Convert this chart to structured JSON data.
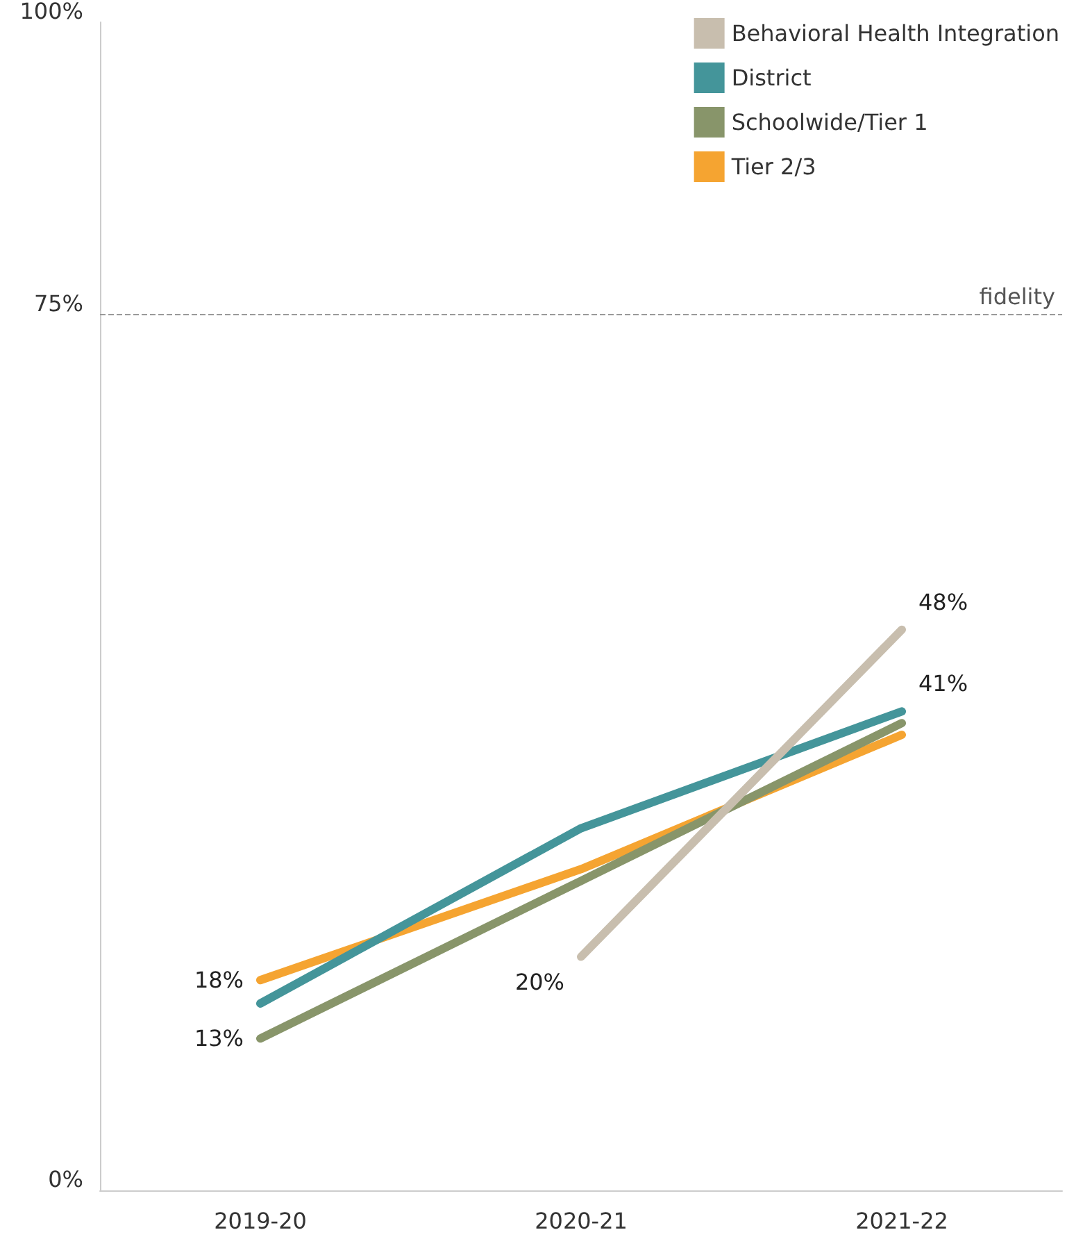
{
  "chart_data": {
    "type": "line",
    "categories": [
      "2019-20",
      "2020-21",
      "2021-22"
    ],
    "series": [
      {
        "name": "Behavioral Health Integration",
        "color": "#c8beae",
        "values": [
          null,
          20,
          48
        ],
        "value_labels": [
          null,
          "20%",
          "48%"
        ]
      },
      {
        "name": "District",
        "color": "#44959a",
        "values": [
          16,
          31,
          41
        ],
        "value_labels": [
          null,
          null,
          "41%"
        ]
      },
      {
        "name": "Schoolwide/Tier 1",
        "color": "#88956a",
        "values": [
          13,
          26.5,
          40
        ],
        "value_labels": [
          "13%",
          null,
          null
        ]
      },
      {
        "name": "Tier 2/3",
        "color": "#f5a431",
        "values": [
          18,
          27.5,
          39
        ],
        "value_labels": [
          "18%",
          null,
          null
        ]
      }
    ],
    "ylim": [
      0,
      100
    ],
    "yticks": [
      {
        "value": 0,
        "label": "0%"
      },
      {
        "value": 75,
        "label": "75%"
      },
      {
        "value": 100,
        "label": "100%"
      }
    ],
    "ref_lines": [
      {
        "axis": "y",
        "value": 75,
        "label": "fidelity",
        "color": "#999999",
        "line_style": "dashed"
      }
    ],
    "grid": false,
    "legend": "top right",
    "marker": "none",
    "line_style": "solid"
  }
}
